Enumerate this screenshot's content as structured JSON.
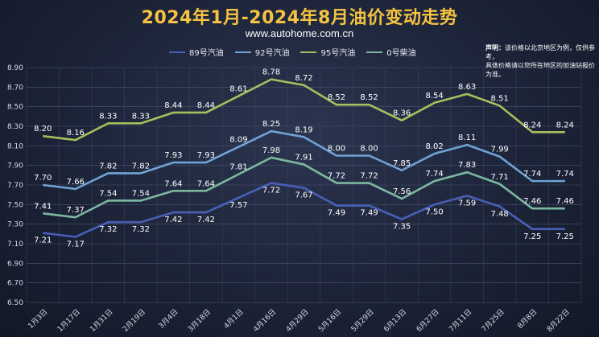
{
  "title": "2024年1月-2024年8月油价变动走势",
  "subtitle": "www.autohome.com.cn",
  "note": {
    "label": "声明：",
    "line1": "该价格以北京地区为例，仅供参考，",
    "line2": "具体价格请以您所在地区的加油站报价为准。"
  },
  "chart_data": {
    "type": "line",
    "categories": [
      "1月3日",
      "1月17日",
      "1月31日",
      "2月19日",
      "3月4日",
      "3月18日",
      "4月1日",
      "4月16日",
      "4月29日",
      "5月16日",
      "5月29日",
      "6月13日",
      "6月27日",
      "7月11日",
      "7月25日",
      "8月8日",
      "8月22日"
    ],
    "ylim": [
      6.5,
      8.9
    ],
    "yticks": [
      "6.50",
      "6.70",
      "6.90",
      "7.10",
      "7.30",
      "7.50",
      "7.70",
      "7.90",
      "8.10",
      "8.30",
      "8.50",
      "8.70",
      "8.90"
    ],
    "grid": true,
    "legend": "top",
    "series": [
      {
        "name": "89号汽油",
        "color": "#4a5fb8",
        "values": [
          7.21,
          7.17,
          7.32,
          7.32,
          7.42,
          7.42,
          7.57,
          7.72,
          7.67,
          7.49,
          7.49,
          7.35,
          7.5,
          7.59,
          7.48,
          7.25,
          7.25
        ]
      },
      {
        "name": "92号汽油",
        "color": "#6fa3d6",
        "values": [
          7.7,
          7.66,
          7.82,
          7.82,
          7.93,
          7.93,
          8.09,
          8.25,
          8.19,
          8.0,
          8.0,
          7.85,
          8.02,
          8.11,
          7.99,
          7.74,
          7.74
        ]
      },
      {
        "name": "95号汽油",
        "color": "#a4bf5c",
        "values": [
          8.2,
          8.16,
          8.33,
          8.33,
          8.44,
          8.44,
          8.61,
          8.78,
          8.72,
          8.52,
          8.52,
          8.36,
          8.54,
          8.63,
          8.51,
          8.24,
          8.24
        ]
      },
      {
        "name": "0号柴油",
        "color": "#7cb8a0",
        "values": [
          7.41,
          7.37,
          7.54,
          7.54,
          7.64,
          7.64,
          7.81,
          7.98,
          7.91,
          7.72,
          7.72,
          7.56,
          7.74,
          7.83,
          7.71,
          7.46,
          7.46
        ]
      }
    ]
  }
}
